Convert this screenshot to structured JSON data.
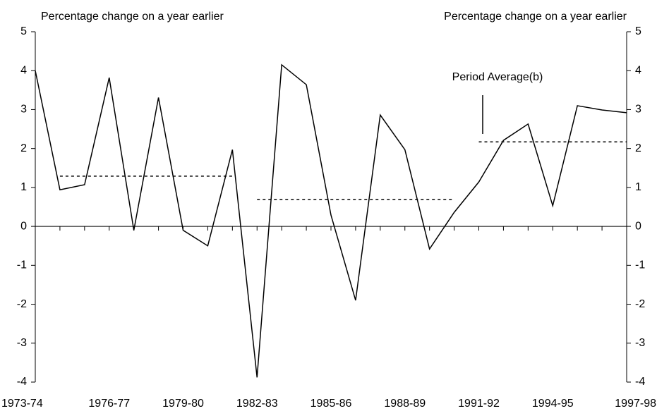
{
  "chart_data": {
    "type": "line",
    "y_label_left": "Percentage change on a year earlier",
    "y_label_right": "Percentage change on a year earlier",
    "annotation": "Period Average(b)",
    "categories": [
      "1973-74",
      null,
      null,
      "1976-77",
      null,
      null,
      "1979-80",
      null,
      null,
      "1982-83",
      null,
      null,
      "1985-86",
      null,
      null,
      "1988-89",
      null,
      null,
      "1991-92",
      null,
      null,
      "1994-95",
      null,
      null,
      "1997-98"
    ],
    "series": [
      {
        "color": "#000000",
        "values": [
          4.0,
          0.94,
          1.07,
          3.82,
          -0.1,
          3.31,
          -0.1,
          -0.5,
          1.97,
          -3.88,
          4.15,
          3.64,
          0.29,
          -1.9,
          2.86,
          1.97,
          -0.58,
          0.36,
          1.14,
          2.21,
          2.63,
          0.53,
          3.1,
          2.99,
          2.92
        ]
      }
    ],
    "averages": [
      {
        "values": [
          null,
          1.29,
          1.29,
          1.29,
          1.29,
          1.29,
          1.29,
          1.29,
          1.29,
          null,
          null,
          null,
          null,
          null,
          null,
          null,
          null,
          null,
          null,
          null,
          null,
          null,
          null,
          null,
          null
        ]
      },
      {
        "values": [
          null,
          null,
          null,
          null,
          null,
          null,
          null,
          null,
          null,
          0.69,
          0.69,
          0.69,
          0.69,
          0.69,
          0.69,
          0.69,
          0.69,
          0.69,
          null,
          null,
          null,
          null,
          null,
          null,
          null
        ]
      },
      {
        "values": [
          null,
          null,
          null,
          null,
          null,
          null,
          null,
          null,
          null,
          null,
          null,
          null,
          null,
          null,
          null,
          null,
          null,
          null,
          2.17,
          2.17,
          2.17,
          2.17,
          2.17,
          2.17,
          2.17
        ]
      }
    ],
    "ylim": [
      -4,
      5
    ],
    "yticks": [
      -4,
      -3,
      -2,
      -1,
      0,
      1,
      2,
      3,
      4,
      5
    ]
  }
}
